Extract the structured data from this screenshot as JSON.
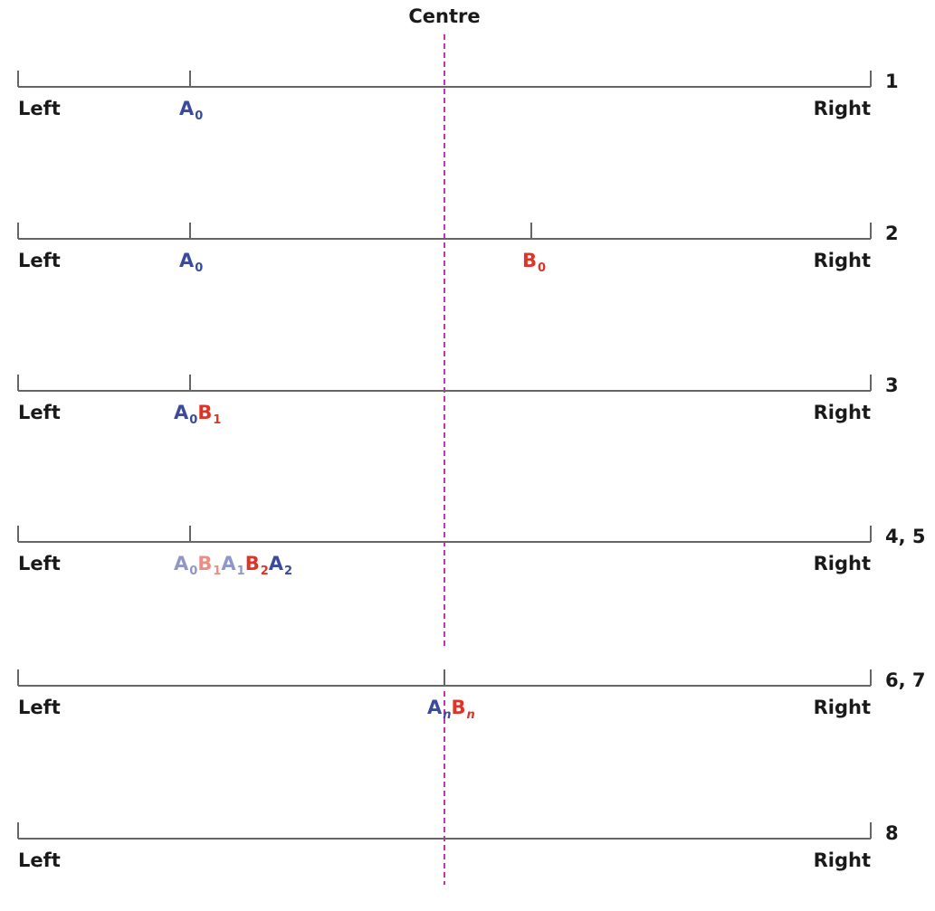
{
  "centre_label": "Centre",
  "left_label": "Left",
  "right_label": "Right",
  "colors": {
    "axis": "#666666",
    "centre_line": "#c233b8",
    "a": "#3a4a9e",
    "b": "#e03226",
    "a_faint": "#8e97c8",
    "b_faint": "#ec8e83"
  },
  "rows": [
    {
      "step": "1",
      "labels": [
        {
          "letter": "A",
          "sub": "0"
        }
      ]
    },
    {
      "step": "2",
      "labels": [
        {
          "letter": "A",
          "sub": "0"
        },
        {
          "letter": "B",
          "sub": "0"
        }
      ]
    },
    {
      "step": "3",
      "labels": [
        {
          "letter": "A",
          "sub": "0"
        },
        {
          "letter": "B",
          "sub": "1"
        }
      ]
    },
    {
      "step": "4, 5",
      "labels": [
        {
          "letter": "A",
          "sub": "0"
        },
        {
          "letter": "B",
          "sub": "1"
        },
        {
          "letter": "A",
          "sub": "1"
        },
        {
          "letter": "B",
          "sub": "2"
        },
        {
          "letter": "A",
          "sub": "2"
        }
      ]
    },
    {
      "step": "6, 7",
      "labels": [
        {
          "letter": "A",
          "sub": "n"
        },
        {
          "letter": "B",
          "sub": "n"
        }
      ]
    },
    {
      "step": "8",
      "labels": []
    }
  ]
}
